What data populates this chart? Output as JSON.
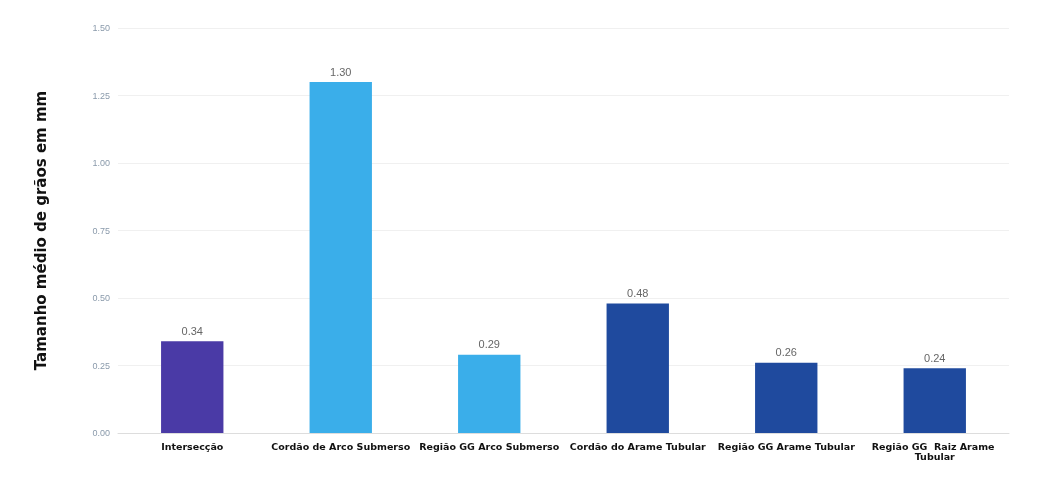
{
  "chart_data": {
    "type": "bar",
    "ylabel": "Tamanho médio de grãos em mm",
    "categories": [
      "Intersecção",
      "Cordão de Arco Submerso",
      "Região GG Arco Submerso",
      "Cordão do Arame Tubular",
      "Região GG Arame Tubular",
      "Região GG  Raiz Arame Tubular"
    ],
    "values": [
      0.34,
      1.3,
      0.29,
      0.48,
      0.26,
      0.24
    ],
    "colors": [
      "#4a3aa6",
      "#3aaeea",
      "#3aaeea",
      "#1f4a9e",
      "#1f4a9e",
      "#1f4a9e"
    ],
    "value_labels": [
      "0.34",
      "1.30",
      "0.29",
      "0.48",
      "0.26",
      "0.24"
    ],
    "ylim": [
      0,
      1.5
    ],
    "yticks": [
      {
        "value": 0,
        "label": "0.00"
      },
      {
        "value": 0.25,
        "label": "0.25"
      },
      {
        "value": 0.5,
        "label": "0.50"
      },
      {
        "value": 0.75,
        "label": "0.75"
      },
      {
        "value": 1,
        "label": "1.00"
      },
      {
        "value": 1.25,
        "label": "1.25"
      },
      {
        "value": 1.5,
        "label": "1.50"
      }
    ],
    "grid": "y"
  }
}
